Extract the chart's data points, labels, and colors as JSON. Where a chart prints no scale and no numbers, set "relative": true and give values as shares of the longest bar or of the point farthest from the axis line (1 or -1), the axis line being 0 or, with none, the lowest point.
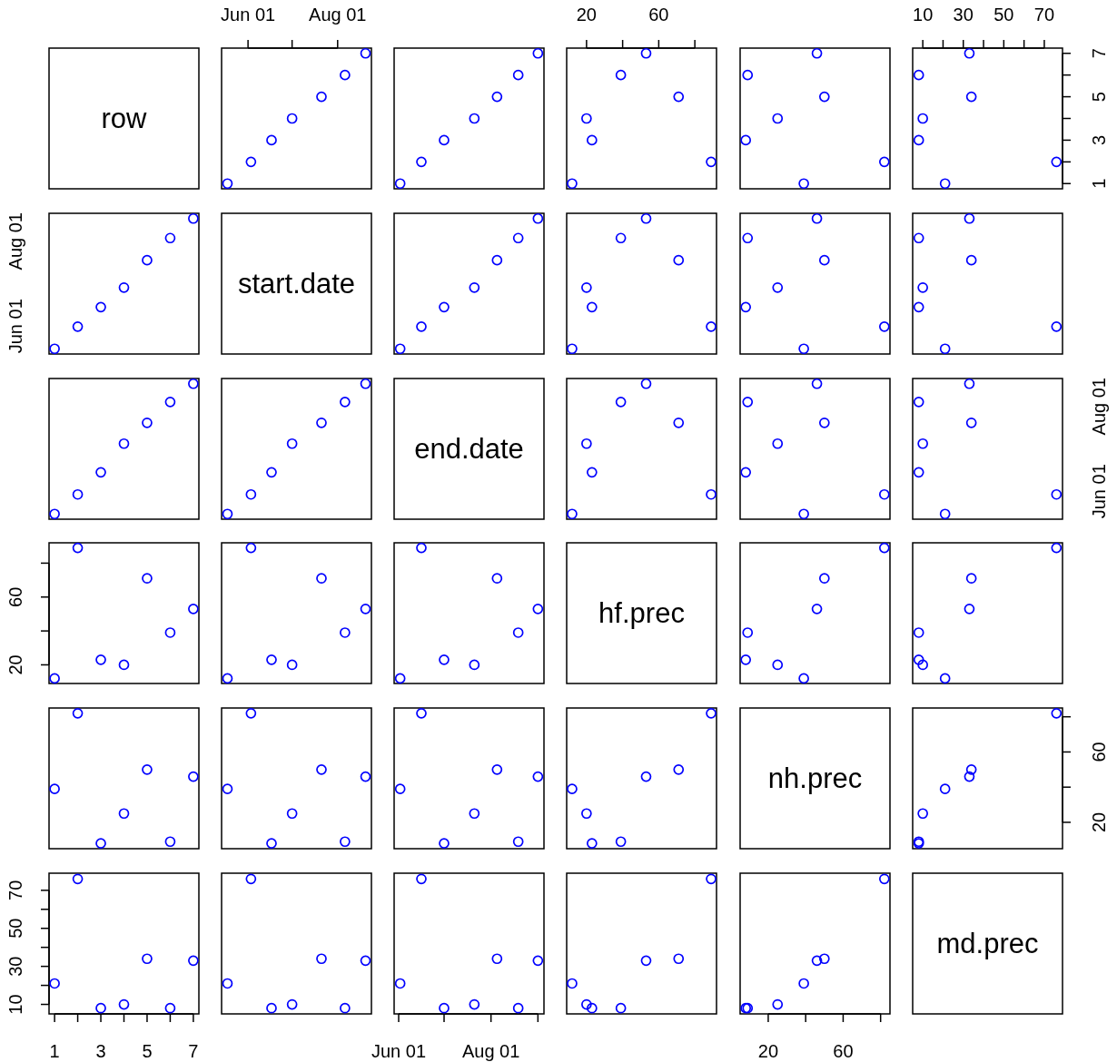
{
  "chart_data": [
    {
      "type": "other",
      "title": "row"
    },
    {
      "type": "scatter",
      "x": [
        "--05-18",
        "--06-03",
        "--06-17",
        "--07-01",
        "--07-21",
        "--08-06",
        "--08-20"
      ],
      "values": [
        1,
        2,
        3,
        4,
        5,
        6,
        7
      ],
      "color": "#0000ff",
      "marker": "circle",
      "xlim": [
        "--05-14",
        "--08-24"
      ],
      "ylim": [
        0.76,
        7.24
      ],
      "xticks": [
        {
          "value": "--06-01",
          "label": "Jun 01"
        },
        {
          "value": "--07-01",
          "label": null
        },
        {
          "value": "--08-01",
          "label": "Aug 01"
        }
      ],
      "tick_labels": "x"
    },
    {
      "type": "scatter",
      "x": [
        "--06-02",
        "--06-16",
        "--07-01",
        "--07-21",
        "--08-05",
        "--08-19",
        "--09-01"
      ],
      "values": [
        1,
        2,
        3,
        4,
        5,
        6,
        7
      ],
      "color": "#0000ff",
      "marker": "circle",
      "xlim": [
        "--05-29",
        "--09-05"
      ],
      "ylim": [
        0.76,
        7.24
      ],
      "tick_labels": false
    },
    {
      "type": "scatter",
      "x": [
        12,
        89,
        23,
        20,
        71,
        39,
        53
      ],
      "values": [
        1,
        2,
        3,
        4,
        5,
        6,
        7
      ],
      "color": "#0000ff",
      "marker": "circle",
      "xlim": [
        9,
        92
      ],
      "ylim": [
        0.76,
        7.24
      ],
      "xticks": [
        20,
        {
          "value": 40,
          "label": null
        },
        60,
        {
          "value": 80,
          "label": null
        }
      ],
      "tick_labels": "x"
    },
    {
      "type": "scatter",
      "x": [
        39,
        82,
        8,
        25,
        50,
        9,
        46
      ],
      "values": [
        1,
        2,
        3,
        4,
        5,
        6,
        7
      ],
      "color": "#0000ff",
      "marker": "circle",
      "xlim": [
        5,
        85
      ],
      "ylim": [
        0.76,
        7.24
      ],
      "tick_labels": false
    },
    {
      "type": "scatter",
      "x": [
        21,
        76,
        8,
        10,
        34,
        8,
        33
      ],
      "values": [
        1,
        2,
        3,
        4,
        5,
        6,
        7
      ],
      "color": "#0000ff",
      "marker": "circle",
      "xlim": [
        5,
        79
      ],
      "ylim": [
        0.76,
        7.24
      ],
      "xticks": [
        10,
        {
          "value": 20,
          "label": null
        },
        30,
        {
          "value": 40,
          "label": null
        },
        50,
        {
          "value": 60,
          "label": null
        },
        70
      ],
      "yticks": [
        1,
        {
          "value": 2,
          "label": null
        },
        3,
        {
          "value": 4,
          "label": null
        },
        5,
        {
          "value": 6,
          "label": null
        },
        7
      ]
    },
    {
      "type": "scatter",
      "x": [
        1,
        2,
        3,
        4,
        5,
        6,
        7
      ],
      "values": [
        0,
        0.17,
        0.32,
        0.47,
        0.68,
        0.85,
        1
      ],
      "relative": true,
      "color": "#0000ff",
      "marker": "circle",
      "xlim": [
        0.76,
        7.24
      ],
      "annotations": [
        "Jun 01",
        "Aug 01"
      ],
      "tick_labels": false
    },
    {
      "type": "other",
      "title": "start.date"
    },
    {
      "type": "scatter",
      "x": [
        "--06-02",
        "--06-16",
        "--07-01",
        "--07-21",
        "--08-05",
        "--08-19",
        "--09-01"
      ],
      "values": [
        0,
        0.17,
        0.32,
        0.47,
        0.68,
        0.85,
        1
      ],
      "relative": true,
      "color": "#0000ff",
      "marker": "circle",
      "xlim": [
        "--05-29",
        "--09-05"
      ],
      "tick_labels": false
    },
    {
      "type": "scatter",
      "x": [
        12,
        89,
        23,
        20,
        71,
        39,
        53
      ],
      "values": [
        0,
        0.17,
        0.32,
        0.47,
        0.68,
        0.85,
        1
      ],
      "relative": true,
      "color": "#0000ff",
      "marker": "circle",
      "xlim": [
        9,
        92
      ],
      "tick_labels": false
    },
    {
      "type": "scatter",
      "x": [
        39,
        82,
        8,
        25,
        50,
        9,
        46
      ],
      "values": [
        0,
        0.17,
        0.32,
        0.47,
        0.68,
        0.85,
        1
      ],
      "relative": true,
      "color": "#0000ff",
      "marker": "circle",
      "xlim": [
        5,
        85
      ],
      "tick_labels": false
    },
    {
      "type": "scatter",
      "x": [
        21,
        76,
        8,
        10,
        34,
        8,
        33
      ],
      "values": [
        0,
        0.17,
        0.32,
        0.47,
        0.68,
        0.85,
        1
      ],
      "relative": true,
      "color": "#0000ff",
      "marker": "circle",
      "xlim": [
        5,
        79
      ],
      "tick_labels": false
    },
    {
      "type": "scatter",
      "x": [
        1,
        2,
        3,
        4,
        5,
        6,
        7
      ],
      "values": [
        0,
        0.15,
        0.32,
        0.54,
        0.7,
        0.86,
        1
      ],
      "relative": true,
      "color": "#0000ff",
      "marker": "circle",
      "xlim": [
        0.76,
        7.24
      ],
      "tick_labels": false
    },
    {
      "type": "scatter",
      "x": [
        "--05-18",
        "--06-03",
        "--06-17",
        "--07-01",
        "--07-21",
        "--08-06",
        "--08-20"
      ],
      "values": [
        0,
        0.15,
        0.32,
        0.54,
        0.7,
        0.86,
        1
      ],
      "relative": true,
      "color": "#0000ff",
      "marker": "circle",
      "xlim": [
        "--05-14",
        "--08-24"
      ],
      "tick_labels": false
    },
    {
      "type": "other",
      "title": "end.date"
    },
    {
      "type": "scatter",
      "x": [
        12,
        89,
        23,
        20,
        71,
        39,
        53
      ],
      "values": [
        0,
        0.15,
        0.32,
        0.54,
        0.7,
        0.86,
        1
      ],
      "relative": true,
      "color": "#0000ff",
      "marker": "circle",
      "xlim": [
        9,
        92
      ],
      "tick_labels": false
    },
    {
      "type": "scatter",
      "x": [
        39,
        82,
        8,
        25,
        50,
        9,
        46
      ],
      "values": [
        0,
        0.15,
        0.32,
        0.54,
        0.7,
        0.86,
        1
      ],
      "relative": true,
      "color": "#0000ff",
      "marker": "circle",
      "xlim": [
        5,
        85
      ],
      "tick_labels": false
    },
    {
      "type": "scatter",
      "x": [
        21,
        76,
        8,
        10,
        34,
        8,
        33
      ],
      "values": [
        0,
        0.15,
        0.32,
        0.54,
        0.7,
        0.86,
        1
      ],
      "relative": true,
      "color": "#0000ff",
      "marker": "circle",
      "xlim": [
        5,
        79
      ],
      "annotations": [
        "Jun 01",
        "Aug 01"
      ],
      "tick_labels": false
    },
    {
      "type": "scatter",
      "x": [
        1,
        2,
        3,
        4,
        5,
        6,
        7
      ],
      "values": [
        12,
        89,
        23,
        20,
        71,
        39,
        53
      ],
      "color": "#0000ff",
      "marker": "circle",
      "xlim": [
        0.76,
        7.24
      ],
      "ylim": [
        9,
        92
      ],
      "yticks": [
        20,
        {
          "value": 40,
          "label": null
        },
        60,
        {
          "value": 80,
          "label": null
        }
      ],
      "tick_labels": "y"
    },
    {
      "type": "scatter",
      "x": [
        "--05-18",
        "--06-03",
        "--06-17",
        "--07-01",
        "--07-21",
        "--08-06",
        "--08-20"
      ],
      "values": [
        12,
        89,
        23,
        20,
        71,
        39,
        53
      ],
      "color": "#0000ff",
      "marker": "circle",
      "xlim": [
        "--05-14",
        "--08-24"
      ],
      "ylim": [
        9,
        92
      ],
      "tick_labels": false
    },
    {
      "type": "scatter",
      "x": [
        "--06-02",
        "--06-16",
        "--07-01",
        "--07-21",
        "--08-05",
        "--08-19",
        "--09-01"
      ],
      "values": [
        12,
        89,
        23,
        20,
        71,
        39,
        53
      ],
      "color": "#0000ff",
      "marker": "circle",
      "xlim": [
        "--05-29",
        "--09-05"
      ],
      "ylim": [
        9,
        92
      ],
      "tick_labels": false
    },
    {
      "type": "other",
      "title": "hf.prec"
    },
    {
      "type": "scatter",
      "x": [
        39,
        82,
        8,
        25,
        50,
        9,
        46
      ],
      "values": [
        12,
        89,
        23,
        20,
        71,
        39,
        53
      ],
      "color": "#0000ff",
      "marker": "circle",
      "xlim": [
        5,
        85
      ],
      "ylim": [
        9,
        92
      ],
      "tick_labels": false
    },
    {
      "type": "scatter",
      "x": [
        21,
        76,
        8,
        10,
        34,
        8,
        33
      ],
      "values": [
        12,
        89,
        23,
        20,
        71,
        39,
        53
      ],
      "color": "#0000ff",
      "marker": "circle",
      "xlim": [
        5,
        79
      ],
      "ylim": [
        9,
        92
      ],
      "tick_labels": false
    },
    {
      "type": "scatter",
      "x": [
        1,
        2,
        3,
        4,
        5,
        6,
        7
      ],
      "values": [
        39,
        82,
        8,
        25,
        50,
        9,
        46
      ],
      "color": "#0000ff",
      "marker": "circle",
      "xlim": [
        0.76,
        7.24
      ],
      "ylim": [
        5,
        85
      ],
      "tick_labels": false
    },
    {
      "type": "scatter",
      "x": [
        "--05-18",
        "--06-03",
        "--06-17",
        "--07-01",
        "--07-21",
        "--08-06",
        "--08-20"
      ],
      "values": [
        39,
        82,
        8,
        25,
        50,
        9,
        46
      ],
      "color": "#0000ff",
      "marker": "circle",
      "xlim": [
        "--05-14",
        "--08-24"
      ],
      "ylim": [
        5,
        85
      ],
      "tick_labels": false
    },
    {
      "type": "scatter",
      "x": [
        "--06-02",
        "--06-16",
        "--07-01",
        "--07-21",
        "--08-05",
        "--08-19",
        "--09-01"
      ],
      "values": [
        39,
        82,
        8,
        25,
        50,
        9,
        46
      ],
      "color": "#0000ff",
      "marker": "circle",
      "xlim": [
        "--05-29",
        "--09-05"
      ],
      "ylim": [
        5,
        85
      ],
      "tick_labels": false
    },
    {
      "type": "scatter",
      "x": [
        12,
        89,
        23,
        20,
        71,
        39,
        53
      ],
      "values": [
        39,
        82,
        8,
        25,
        50,
        9,
        46
      ],
      "color": "#0000ff",
      "marker": "circle",
      "xlim": [
        9,
        92
      ],
      "ylim": [
        5,
        85
      ],
      "tick_labels": false
    },
    {
      "type": "other",
      "title": "nh.prec"
    },
    {
      "type": "scatter",
      "x": [
        21,
        76,
        8,
        10,
        34,
        8,
        33
      ],
      "values": [
        39,
        82,
        8,
        25,
        50,
        9,
        46
      ],
      "color": "#0000ff",
      "marker": "circle",
      "xlim": [
        5,
        79
      ],
      "ylim": [
        5,
        85
      ],
      "yticks": [
        20,
        {
          "value": 40,
          "label": null
        },
        60,
        {
          "value": 80,
          "label": null
        }
      ],
      "tick_labels": "y"
    },
    {
      "type": "scatter",
      "x": [
        1,
        2,
        3,
        4,
        5,
        6,
        7
      ],
      "values": [
        21,
        76,
        8,
        10,
        34,
        8,
        33
      ],
      "color": "#0000ff",
      "marker": "circle",
      "xlim": [
        0.76,
        7.24
      ],
      "ylim": [
        5,
        79
      ],
      "xticks": [
        1,
        {
          "value": 2,
          "label": null
        },
        3,
        {
          "value": 4,
          "label": null
        },
        5,
        {
          "value": 6,
          "label": null
        },
        7
      ],
      "yticks": [
        10,
        {
          "value": 20,
          "label": null
        },
        30,
        {
          "value": 40,
          "label": null
        },
        50,
        {
          "value": 60,
          "label": null
        },
        70
      ]
    },
    {
      "type": "scatter",
      "x": [
        "--05-18",
        "--06-03",
        "--06-17",
        "--07-01",
        "--07-21",
        "--08-06",
        "--08-20"
      ],
      "values": [
        21,
        76,
        8,
        10,
        34,
        8,
        33
      ],
      "color": "#0000ff",
      "marker": "circle",
      "xlim": [
        "--05-14",
        "--08-24"
      ],
      "ylim": [
        5,
        79
      ],
      "tick_labels": false
    },
    {
      "type": "scatter",
      "x": [
        "--06-02",
        "--06-16",
        "--07-01",
        "--07-21",
        "--08-05",
        "--08-19",
        "--09-01"
      ],
      "values": [
        21,
        76,
        8,
        10,
        34,
        8,
        33
      ],
      "color": "#0000ff",
      "marker": "circle",
      "xlim": [
        "--05-29",
        "--09-05"
      ],
      "ylim": [
        5,
        79
      ],
      "xticks": [
        {
          "value": "--06-01",
          "label": "Jun 01"
        },
        {
          "value": "--07-01",
          "label": null
        },
        {
          "value": "--08-01",
          "label": "Aug 01"
        },
        {
          "value": "--09-01",
          "label": null
        }
      ],
      "tick_labels": "x"
    },
    {
      "type": "scatter",
      "x": [
        12,
        89,
        23,
        20,
        71,
        39,
        53
      ],
      "values": [
        21,
        76,
        8,
        10,
        34,
        8,
        33
      ],
      "color": "#0000ff",
      "marker": "circle",
      "xlim": [
        9,
        92
      ],
      "ylim": [
        5,
        79
      ],
      "tick_labels": false
    },
    {
      "type": "scatter",
      "x": [
        39,
        82,
        8,
        25,
        50,
        9,
        46
      ],
      "values": [
        21,
        76,
        8,
        10,
        34,
        8,
        33
      ],
      "color": "#0000ff",
      "marker": "circle",
      "xlim": [
        5,
        85
      ],
      "ylim": [
        5,
        79
      ],
      "xticks": [
        20,
        {
          "value": 40,
          "label": null
        },
        60,
        {
          "value": 80,
          "label": null
        }
      ],
      "tick_labels": "x"
    },
    {
      "type": "other",
      "title": "md.prec"
    }
  ]
}
